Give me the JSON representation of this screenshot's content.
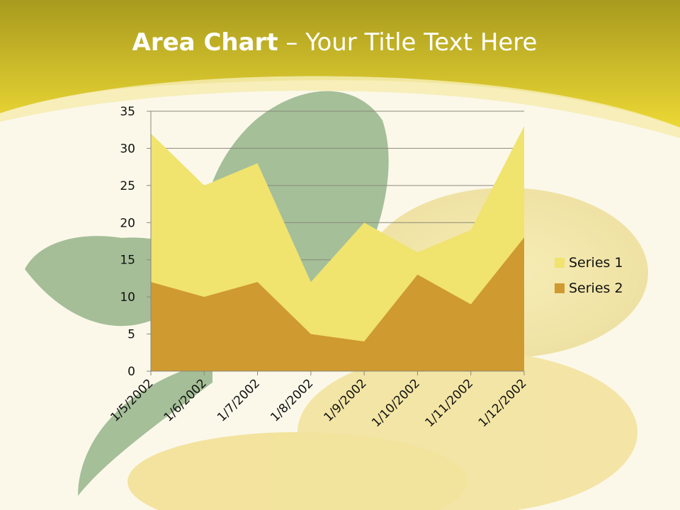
{
  "slide": {
    "title_strong": "Area Chart",
    "title_rest": " – Your Title Text Here"
  },
  "colors": {
    "banner_top": "#a89a1e",
    "banner_bottom": "#ecd835",
    "background": "#fbf8ea",
    "series1": "#f0e36e",
    "series2": "#cf9a30"
  },
  "chart_data": {
    "type": "area",
    "title": "",
    "xlabel": "",
    "ylabel": "",
    "categories": [
      "1/5/2002",
      "1/6/2002",
      "1/7/2002",
      "1/8/2002",
      "1/9/2002",
      "1/10/2002",
      "1/11/2002",
      "1/12/2002"
    ],
    "series": [
      {
        "name": "Series 1",
        "values": [
          32,
          25,
          28,
          12,
          20,
          16,
          19,
          33
        ],
        "color": "#f0e36e"
      },
      {
        "name": "Series 2",
        "values": [
          12,
          10,
          12,
          5,
          4,
          13,
          9,
          18
        ],
        "color": "#cf9a30"
      }
    ],
    "yticks": [
      "0",
      "5",
      "10",
      "15",
      "20",
      "25",
      "30",
      "35"
    ],
    "ylim": [
      0,
      35
    ],
    "grid": true,
    "legend_position": "right"
  }
}
